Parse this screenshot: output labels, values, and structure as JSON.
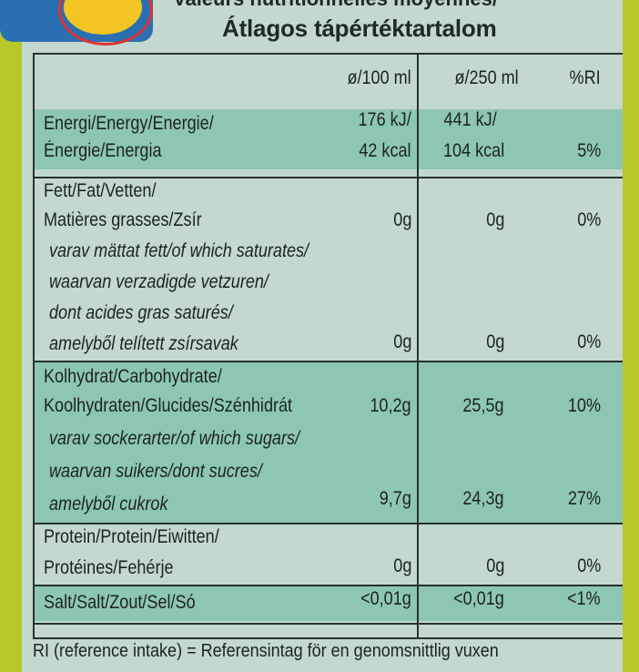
{
  "header": {
    "partial_title": "Valeurs nutritionnelles moyennes/",
    "title": "Átlagos tápértéktartalom"
  },
  "columns": {
    "per100": "ø/100 ml",
    "per250": "ø/250 ml",
    "ri": "%RI"
  },
  "rows": {
    "energy": {
      "label1": "Energi/Energy/Energie/",
      "label2": "Énergie/Energia",
      "p100_kj": "176 kJ/",
      "p100_kcal": "42 kcal",
      "p250_kj": "441 kJ/",
      "p250_kcal": "104 kcal",
      "ri": "5%"
    },
    "fat": {
      "label1": "Fett/Fat/Vetten/",
      "label2": "Matières grasses/Zsír",
      "p100": "0g",
      "p250": "0g",
      "ri": "0%",
      "sub1": "varav mättat fett/of which saturates/",
      "sub2": "waarvan verzadigde vetzuren/",
      "sub3": "dont acides gras saturés/",
      "sub4": "amelyből telített zsírsavak",
      "sub_p100": "0g",
      "sub_p250": "0g",
      "sub_ri": "0%"
    },
    "carb": {
      "label1": "Kolhydrat/Carbohydrate/",
      "label2": "Koolhydraten/Glucides/Szénhidrát",
      "p100": "10,2g",
      "p250": "25,5g",
      "ri": "10%",
      "sub1": "varav sockerarter/of which sugars/",
      "sub2": "waarvan suikers/dont sucres/",
      "sub3": "amelyből cukrok",
      "sub_p100": "9,7g",
      "sub_p250": "24,3g",
      "sub_ri": "27%"
    },
    "protein": {
      "label1": "Protein/Protein/Eiwitten/",
      "label2": "Protéines/Fehérje",
      "p100": "0g",
      "p250": "0g",
      "ri": "0%"
    },
    "salt": {
      "label": "Salt/Salt/Zout/Sel/Só",
      "p100": "<0,01g",
      "p250": "<0,01g",
      "ri": "<1%"
    }
  },
  "footer": "RI (reference intake) = Referensintag för en genomsnittlig vuxen"
}
